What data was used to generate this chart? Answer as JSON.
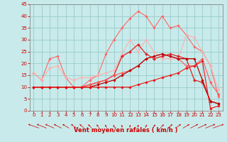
{
  "x": [
    0,
    1,
    2,
    3,
    4,
    5,
    6,
    7,
    8,
    9,
    10,
    11,
    12,
    13,
    14,
    15,
    16,
    17,
    18,
    19,
    20,
    21,
    22,
    23
  ],
  "series": [
    {
      "color": "#FF6666",
      "linewidth": 0.8,
      "markersize": 1.8,
      "y": [
        16,
        13,
        22,
        23,
        14,
        10,
        10,
        13,
        15,
        24,
        30,
        35,
        39,
        42,
        40,
        35,
        40,
        35,
        36,
        32,
        27,
        25,
        19,
        6
      ]
    },
    {
      "color": "#FFB0B0",
      "linewidth": 0.8,
      "markersize": 1.8,
      "y": [
        16,
        13,
        18,
        19,
        14,
        13,
        14,
        14,
        15,
        16,
        17,
        24,
        30,
        25,
        30,
        25,
        22,
        22,
        22,
        32,
        31,
        25,
        19,
        9
      ]
    },
    {
      "color": "#DD2222",
      "linewidth": 0.9,
      "markersize": 2.0,
      "y": [
        10,
        10,
        10,
        10,
        10,
        10,
        10,
        11,
        12,
        13,
        15,
        23,
        25,
        28,
        24,
        22,
        23,
        24,
        23,
        22,
        13,
        12,
        4,
        3
      ]
    },
    {
      "color": "#FF5555",
      "linewidth": 0.8,
      "markersize": 1.8,
      "y": [
        10,
        10,
        10,
        10,
        10,
        10,
        10,
        11,
        12,
        13,
        15,
        16,
        17,
        19,
        22,
        23,
        24,
        23,
        22,
        19,
        19,
        22,
        12,
        7
      ]
    },
    {
      "color": "#BB0000",
      "linewidth": 0.9,
      "markersize": 1.8,
      "y": [
        10,
        10,
        10,
        10,
        10,
        10,
        10,
        10,
        11,
        12,
        13,
        15,
        17,
        19,
        22,
        23,
        24,
        23,
        22,
        22,
        22,
        13,
        4,
        3
      ]
    },
    {
      "color": "#EE1111",
      "linewidth": 0.8,
      "markersize": 1.8,
      "y": [
        10,
        10,
        10,
        10,
        10,
        10,
        10,
        10,
        10,
        10,
        10,
        10,
        10,
        11,
        12,
        13,
        14,
        15,
        16,
        18,
        19,
        21,
        1,
        2
      ]
    }
  ],
  "xlim": [
    -0.5,
    23.5
  ],
  "ylim": [
    0,
    45
  ],
  "yticks": [
    0,
    5,
    10,
    15,
    20,
    25,
    30,
    35,
    40,
    45
  ],
  "xticks": [
    0,
    1,
    2,
    3,
    4,
    5,
    6,
    7,
    8,
    9,
    10,
    11,
    12,
    13,
    14,
    15,
    16,
    17,
    18,
    19,
    20,
    21,
    22,
    23
  ],
  "xlabel": "Vent moyen/en rafales ( km/h )",
  "xlabel_color": "#CC0000",
  "xlabel_fontsize": 6,
  "tick_color": "#CC0000",
  "tick_fontsize": 5,
  "grid_color": "#99cccc",
  "bg_color": "#c8eaea",
  "arrow_color": "#CC0000",
  "spine_color": "#888888"
}
